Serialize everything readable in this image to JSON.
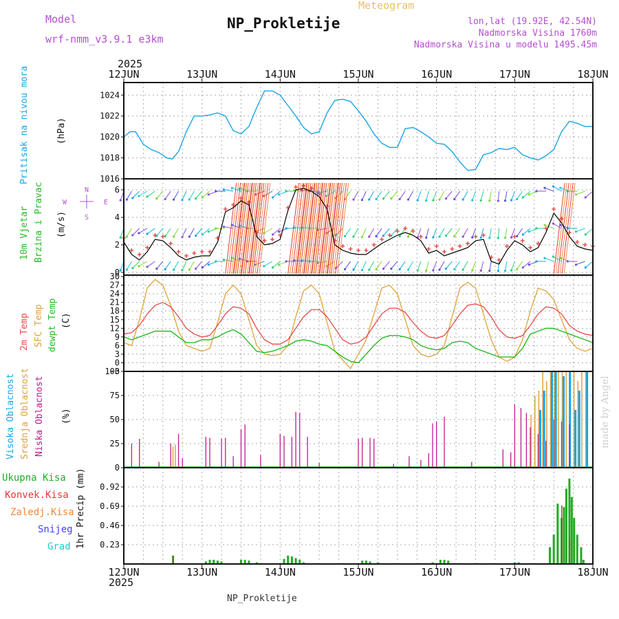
{
  "header": {
    "model_label": "Model",
    "model_value": "wrf-nmm_v3.9.1  e3km",
    "subtitle": "Meteogram",
    "station": "NP_Prokletije",
    "coords": "lon,lat (19.92E, 42.54N)",
    "elev_station": "Nadmorska Visina 1760m",
    "elev_model": "Nadmorska Visina u modelu 1495.45m",
    "year_top": "2025",
    "year_bottom": "2025",
    "footer_station": "NP_Prokletije",
    "credit": "made by Angel"
  },
  "colors": {
    "pressure": "#19a4e6",
    "wind_speed": "#000000",
    "wind_gust": "#e23a3a",
    "t2m": "#e84a4a",
    "tsfc": "#e0a23a",
    "dewpoint": "#22bb22",
    "cloud_high": "#19a4e6",
    "cloud_mid": "#e0a23a",
    "cloud_low": "#c0198f",
    "precip_total": "#22aa22",
    "precip_conv": "#e23a3a",
    "precip_strat": "#f08a3a",
    "snow": "#4444ee",
    "hail": "#22cccc",
    "model_color": "#b44fd0",
    "title_color": "#111111"
  },
  "chart_data": [
    {
      "type": "line",
      "id": "pressure",
      "ylabel": "Pritisak na nivou mora",
      "units": "(hPa)",
      "ylim": [
        1016,
        1025.2
      ],
      "yticks": [
        1016,
        1018,
        1020,
        1022,
        1024
      ],
      "x_days": [
        "12JUN",
        "13JUN",
        "14JUN",
        "15JUN",
        "16JUN",
        "17JUN",
        "18JUN"
      ],
      "x": [
        0,
        0.08,
        0.15,
        0.25,
        0.35,
        0.45,
        0.55,
        0.62,
        0.7,
        0.8,
        0.9,
        1.0,
        1.1,
        1.2,
        1.3,
        1.4,
        1.5,
        1.6,
        1.7,
        1.8,
        1.9,
        2.0,
        2.1,
        2.2,
        2.3,
        2.4,
        2.5,
        2.6,
        2.7,
        2.8,
        2.9,
        3.0,
        3.1,
        3.2,
        3.3,
        3.4,
        3.5,
        3.6,
        3.7,
        3.8,
        3.9,
        4.0,
        4.1,
        4.2,
        4.3,
        4.4,
        4.5,
        4.6,
        4.7,
        4.8,
        4.9,
        5.0,
        5.1,
        5.2,
        5.3,
        5.4,
        5.5,
        5.6,
        5.7,
        5.8,
        5.9,
        6.0
      ],
      "values": [
        1020.0,
        1020.5,
        1020.5,
        1019.3,
        1018.8,
        1018.5,
        1018.0,
        1017.9,
        1018.6,
        1020.5,
        1022.0,
        1022.0,
        1022.1,
        1022.3,
        1022.0,
        1020.6,
        1020.3,
        1021.0,
        1022.8,
        1024.4,
        1024.4,
        1024.0,
        1023.0,
        1022.0,
        1020.9,
        1020.3,
        1020.5,
        1022.3,
        1023.5,
        1023.6,
        1023.4,
        1022.5,
        1021.5,
        1020.3,
        1019.4,
        1019.0,
        1019.0,
        1020.8,
        1020.9,
        1020.5,
        1020.0,
        1019.4,
        1019.3,
        1018.6,
        1017.6,
        1016.8,
        1016.9,
        1018.3,
        1018.5,
        1018.9,
        1018.8,
        1019.0,
        1018.3,
        1018.0,
        1017.8,
        1018.2,
        1018.8,
        1020.5,
        1021.5,
        1021.3,
        1021.0,
        1021.0
      ]
    },
    {
      "type": "line",
      "id": "wind",
      "ylabel": "10m Vjetar",
      "ylabel2": "Brzina i Pravac",
      "units": "(m/s)",
      "compass": [
        "N",
        "E",
        "S",
        "W"
      ],
      "ylim": [
        -0.2,
        6.8
      ],
      "yticks": [
        0,
        2,
        4,
        6
      ],
      "x": [
        0,
        0.1,
        0.2,
        0.3,
        0.4,
        0.5,
        0.6,
        0.7,
        0.8,
        0.9,
        1.0,
        1.1,
        1.2,
        1.3,
        1.4,
        1.5,
        1.6,
        1.7,
        1.8,
        1.9,
        2.0,
        2.1,
        2.2,
        2.3,
        2.4,
        2.5,
        2.6,
        2.7,
        2.8,
        2.9,
        3.0,
        3.1,
        3.2,
        3.3,
        3.4,
        3.5,
        3.6,
        3.7,
        3.8,
        3.9,
        4.0,
        4.1,
        4.2,
        4.3,
        4.4,
        4.5,
        4.6,
        4.7,
        4.8,
        4.9,
        5.0,
        5.1,
        5.2,
        5.3,
        5.4,
        5.5,
        5.6,
        5.7,
        5.8,
        5.9,
        6.0
      ],
      "speed": [
        2.2,
        1.3,
        0.9,
        1.5,
        2.4,
        2.3,
        1.8,
        1.2,
        0.9,
        1.1,
        1.2,
        1.2,
        2.2,
        4.4,
        4.7,
        5.2,
        4.9,
        2.6,
        2.0,
        2.1,
        2.4,
        4.5,
        6.0,
        6.1,
        5.9,
        5.5,
        4.6,
        2.0,
        1.6,
        1.4,
        1.3,
        1.3,
        1.7,
        2.1,
        2.4,
        2.7,
        2.9,
        2.7,
        2.3,
        1.4,
        1.6,
        1.2,
        1.4,
        1.6,
        1.8,
        2.3,
        2.4,
        0.8,
        0.6,
        1.6,
        2.3,
        2.0,
        1.5,
        1.8,
        2.9,
        4.3,
        3.6,
        2.6,
        1.9,
        1.7,
        1.6
      ],
      "gust": [
        2.5,
        1.6,
        1.3,
        1.8,
        2.7,
        2.6,
        2.1,
        1.5,
        1.2,
        1.4,
        1.5,
        1.5,
        2.5,
        4.6,
        4.9,
        5.4,
        5.1,
        2.9,
        2.3,
        2.4,
        2.7,
        4.7,
        6.2,
        6.3,
        6.1,
        5.7,
        4.8,
        2.3,
        1.9,
        1.7,
        1.6,
        1.6,
        2.0,
        2.4,
        2.7,
        3.0,
        3.2,
        3.0,
        2.6,
        1.7,
        1.9,
        1.5,
        1.7,
        1.9,
        2.1,
        2.6,
        2.7,
        1.1,
        0.9,
        1.9,
        2.6,
        2.3,
        1.8,
        2.1,
        3.2,
        4.6,
        3.9,
        2.9,
        2.2,
        2.0,
        1.9
      ],
      "direction_deg": [
        200,
        210,
        225,
        240,
        235,
        220,
        215,
        210,
        205,
        210,
        220,
        230,
        250,
        270,
        280,
        290,
        285,
        270,
        250,
        240,
        230,
        250,
        270,
        275,
        275,
        270,
        260,
        240,
        225,
        215,
        210,
        205,
        210,
        215,
        220,
        220,
        215,
        210,
        200,
        195,
        200,
        210,
        220,
        215,
        210,
        200,
        195,
        190,
        185,
        190,
        200,
        215,
        230,
        250,
        270,
        290,
        300,
        290,
        270,
        250,
        230
      ]
    },
    {
      "type": "line",
      "id": "temperature",
      "ylabel": "2m Temp",
      "ylabel2": "SFC Temp",
      "ylabel3": "dewpt Temp",
      "units": "(C)",
      "ylim": [
        -3,
        30.5
      ],
      "yticks": [
        -3,
        0,
        3,
        6,
        9,
        12,
        15,
        18,
        21,
        24,
        27,
        30
      ],
      "x": [
        0,
        0.1,
        0.2,
        0.3,
        0.4,
        0.5,
        0.6,
        0.7,
        0.8,
        0.9,
        1.0,
        1.1,
        1.2,
        1.3,
        1.4,
        1.5,
        1.6,
        1.7,
        1.8,
        1.9,
        2.0,
        2.1,
        2.2,
        2.3,
        2.4,
        2.5,
        2.6,
        2.7,
        2.8,
        2.9,
        3.0,
        3.1,
        3.2,
        3.3,
        3.4,
        3.5,
        3.6,
        3.7,
        3.8,
        3.9,
        4.0,
        4.1,
        4.2,
        4.3,
        4.4,
        4.5,
        4.6,
        4.7,
        4.8,
        4.9,
        5.0,
        5.1,
        5.2,
        5.3,
        5.4,
        5.5,
        5.6,
        5.7,
        5.8,
        5.9,
        6.0
      ],
      "t2m": [
        10,
        10.5,
        13,
        17,
        20,
        21,
        19.5,
        16,
        12,
        10,
        9,
        9.5,
        13,
        17,
        19.5,
        19,
        17,
        12,
        8,
        6.5,
        6.5,
        8,
        12,
        16,
        18.5,
        18.5,
        16,
        12,
        8,
        6.5,
        7,
        9,
        13,
        17,
        19,
        19,
        17.5,
        14,
        11,
        9,
        8.5,
        9.5,
        13,
        17,
        20,
        20.5,
        19.5,
        16,
        11.5,
        9,
        8.5,
        9.5,
        13,
        17,
        19.5,
        19,
        17,
        13,
        11,
        10,
        9.5
      ],
      "tsfc": [
        7,
        6,
        15,
        26,
        29,
        27,
        20,
        11,
        6,
        5,
        4,
        5,
        14,
        24,
        27,
        24,
        15,
        6,
        3,
        2.5,
        3,
        6,
        16,
        25,
        27,
        24,
        14,
        4,
        1,
        -2,
        3,
        8,
        17,
        26,
        27,
        24,
        15,
        6,
        3,
        2,
        3,
        6,
        16,
        26,
        28,
        26,
        17,
        8,
        2,
        0.5,
        2,
        8,
        18,
        26,
        25,
        22,
        15,
        8,
        5,
        4,
        5
      ],
      "dewpoint": [
        9,
        8,
        9,
        10,
        11,
        11,
        11,
        9,
        7,
        7,
        8,
        8,
        9,
        10.5,
        11.5,
        10,
        7,
        4,
        3.5,
        4,
        5,
        6,
        7.5,
        8,
        7.5,
        6.5,
        6,
        4,
        2,
        0.5,
        0,
        3,
        6,
        8.5,
        9.5,
        9.5,
        9,
        8,
        6,
        5,
        4.5,
        5,
        7,
        7.5,
        7,
        5,
        4,
        3,
        2,
        2,
        2,
        5,
        10,
        11,
        12,
        12,
        11,
        10,
        9,
        8,
        7
      ]
    },
    {
      "type": "bar",
      "id": "clouds",
      "ylabel": "Visoka Oblacnost",
      "ylabel2": "Srednja Oblacnost",
      "ylabel3": "Niska Oblacnost",
      "units": "(%)",
      "ylim": [
        0,
        100
      ],
      "yticks": [
        0,
        25,
        50,
        75,
        100
      ],
      "low": [
        [
          0.1,
          25
        ],
        [
          0.2,
          30
        ],
        [
          0.45,
          6
        ],
        [
          0.6,
          25
        ],
        [
          0.7,
          35
        ],
        [
          0.75,
          10
        ],
        [
          1.05,
          32
        ],
        [
          1.1,
          31
        ],
        [
          1.25,
          30
        ],
        [
          1.3,
          31
        ],
        [
          1.4,
          12
        ],
        [
          1.5,
          40
        ],
        [
          1.55,
          45
        ],
        [
          1.75,
          13
        ],
        [
          2.0,
          35
        ],
        [
          2.05,
          33
        ],
        [
          2.15,
          32
        ],
        [
          2.2,
          58
        ],
        [
          2.25,
          57
        ],
        [
          2.35,
          32
        ],
        [
          2.5,
          5
        ],
        [
          3.0,
          30
        ],
        [
          3.05,
          31
        ],
        [
          3.15,
          31
        ],
        [
          3.2,
          30
        ],
        [
          3.45,
          4
        ],
        [
          3.65,
          12
        ],
        [
          3.8,
          8
        ],
        [
          3.9,
          15
        ],
        [
          3.95,
          46
        ],
        [
          4.0,
          48
        ],
        [
          4.1,
          53
        ],
        [
          4.45,
          6
        ],
        [
          4.85,
          19
        ],
        [
          4.95,
          16
        ],
        [
          5.0,
          66
        ],
        [
          5.08,
          62
        ],
        [
          5.15,
          57
        ],
        [
          5.2,
          42
        ],
        [
          5.3,
          35
        ],
        [
          5.4,
          28
        ],
        [
          5.5,
          50
        ],
        [
          5.6,
          48
        ],
        [
          5.7,
          45
        ]
      ],
      "mid": [
        [
          0.62,
          22
        ],
        [
          0.65,
          24
        ],
        [
          5.2,
          55
        ],
        [
          5.25,
          75
        ],
        [
          5.3,
          80
        ],
        [
          5.35,
          100
        ],
        [
          5.4,
          90
        ],
        [
          5.45,
          100
        ],
        [
          5.5,
          100
        ],
        [
          5.55,
          100
        ],
        [
          5.6,
          100
        ],
        [
          5.65,
          100
        ],
        [
          5.7,
          100
        ],
        [
          5.75,
          100
        ],
        [
          5.8,
          90
        ],
        [
          5.85,
          100
        ],
        [
          5.9,
          100
        ]
      ],
      "high": [
        [
          5.3,
          60
        ],
        [
          5.35,
          80
        ],
        [
          5.45,
          100
        ],
        [
          5.5,
          100
        ],
        [
          5.6,
          95
        ],
        [
          5.68,
          100
        ],
        [
          5.75,
          60
        ],
        [
          5.8,
          80
        ],
        [
          5.9,
          100
        ]
      ]
    },
    {
      "type": "bar",
      "id": "precip",
      "ylabel": "1hr Precip (mm)",
      "legend": [
        "Ukupna  Kisa",
        "Konvek.Kisa",
        "Zaledj.Kisa",
        "Snijeg",
        "Grad"
      ],
      "ylim": [
        0,
        1.15
      ],
      "yticks": [
        0.23,
        0.46,
        0.69,
        0.92
      ],
      "x_days": [
        "12JUN",
        "13JUN",
        "14JUN",
        "15JUN",
        "16JUN",
        "17JUN",
        "18JUN"
      ],
      "total": [
        [
          0.63,
          0.1
        ],
        [
          1.05,
          0.03
        ],
        [
          1.1,
          0.05
        ],
        [
          1.15,
          0.05
        ],
        [
          1.2,
          0.04
        ],
        [
          1.25,
          0.03
        ],
        [
          1.5,
          0.05
        ],
        [
          1.55,
          0.05
        ],
        [
          1.6,
          0.04
        ],
        [
          1.7,
          0.02
        ],
        [
          2.05,
          0.06
        ],
        [
          2.1,
          0.1
        ],
        [
          2.15,
          0.09
        ],
        [
          2.2,
          0.07
        ],
        [
          2.25,
          0.05
        ],
        [
          2.3,
          0.02
        ],
        [
          3.05,
          0.04
        ],
        [
          3.1,
          0.04
        ],
        [
          3.15,
          0.03
        ],
        [
          3.25,
          0.02
        ],
        [
          3.95,
          0.02
        ],
        [
          4.05,
          0.05
        ],
        [
          4.1,
          0.05
        ],
        [
          4.15,
          0.04
        ],
        [
          5.0,
          0.02
        ],
        [
          5.05,
          0.02
        ],
        [
          5.45,
          0.2
        ],
        [
          5.5,
          0.35
        ],
        [
          5.55,
          0.72
        ],
        [
          5.6,
          0.55
        ],
        [
          5.63,
          0.68
        ],
        [
          5.66,
          0.9
        ],
        [
          5.7,
          1.02
        ],
        [
          5.73,
          0.8
        ],
        [
          5.76,
          0.55
        ],
        [
          5.8,
          0.35
        ],
        [
          5.85,
          0.2
        ],
        [
          5.88,
          0.05
        ]
      ],
      "convective": [
        [
          0.63,
          0.1
        ],
        [
          5.6,
          0.7
        ],
        [
          5.7,
          0.3
        ]
      ]
    }
  ]
}
